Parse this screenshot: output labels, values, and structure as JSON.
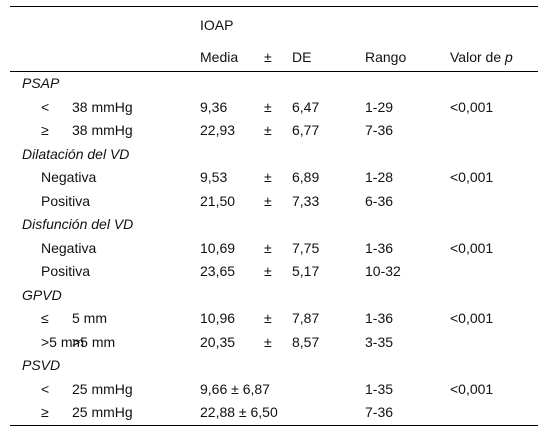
{
  "header": {
    "group": "IOAP",
    "media": "Media",
    "pm": "±",
    "de": "DE",
    "rango": "Rango",
    "valor_prefix": "Valor de ",
    "valor_p": "p"
  },
  "sections": [
    {
      "title": "PSAP",
      "rows": [
        {
          "sym": "<",
          "label": "38 mmHg",
          "media": "9,36",
          "pm": "±",
          "de": "6,47",
          "rango": "1-29",
          "p": "<0,001"
        },
        {
          "sym": "≥",
          "label": "38 mmHg",
          "media": "22,93",
          "pm": "±",
          "de": "6,77",
          "rango": "7-36",
          "p": ""
        }
      ]
    },
    {
      "title": "Dilatación del VD",
      "rows": [
        {
          "sym": "",
          "label": "Negativa",
          "media": "9,53",
          "pm": "±",
          "de": "6,89",
          "rango": "1-28",
          "p": "<0,001"
        },
        {
          "sym": "",
          "label": "Positiva",
          "media": "21,50",
          "pm": "±",
          "de": "7,33",
          "rango": "6-36",
          "p": ""
        }
      ]
    },
    {
      "title": "Disfunción del VD",
      "rows": [
        {
          "sym": "",
          "label": "Negativa",
          "media": "10,69",
          "pm": "±",
          "de": "7,75",
          "rango": "1-36",
          "p": "<0,001"
        },
        {
          "sym": "",
          "label": "Positiva",
          "media": "23,65",
          "pm": "±",
          "de": "5,17",
          "rango": "10-32",
          "p": ""
        }
      ]
    },
    {
      "title": "GPVD",
      "rows": [
        {
          "sym": "≤",
          "label": "5 mm",
          "media": "10,96",
          "pm": "±",
          "de": "7,87",
          "rango": "1-36",
          "p": "<0,001"
        },
        {
          "sym": ">5 mm",
          "label": ">5 mm",
          "media": "20,35",
          "pm": "±",
          "de": "8,57",
          "rango": "3-35",
          "p": ""
        }
      ]
    },
    {
      "title": "PSVD",
      "rows": [
        {
          "sym": "<",
          "label": "25 mmHg",
          "media": "9,66 ± 6,87",
          "pm": "",
          "de": "",
          "rango": "1-35",
          "p": "<0,001"
        },
        {
          "sym": "≥",
          "label": "25 mmHg",
          "media": "22,88 ± 6,50",
          "pm": "",
          "de": "",
          "rango": "7-36",
          "p": ""
        }
      ]
    }
  ]
}
